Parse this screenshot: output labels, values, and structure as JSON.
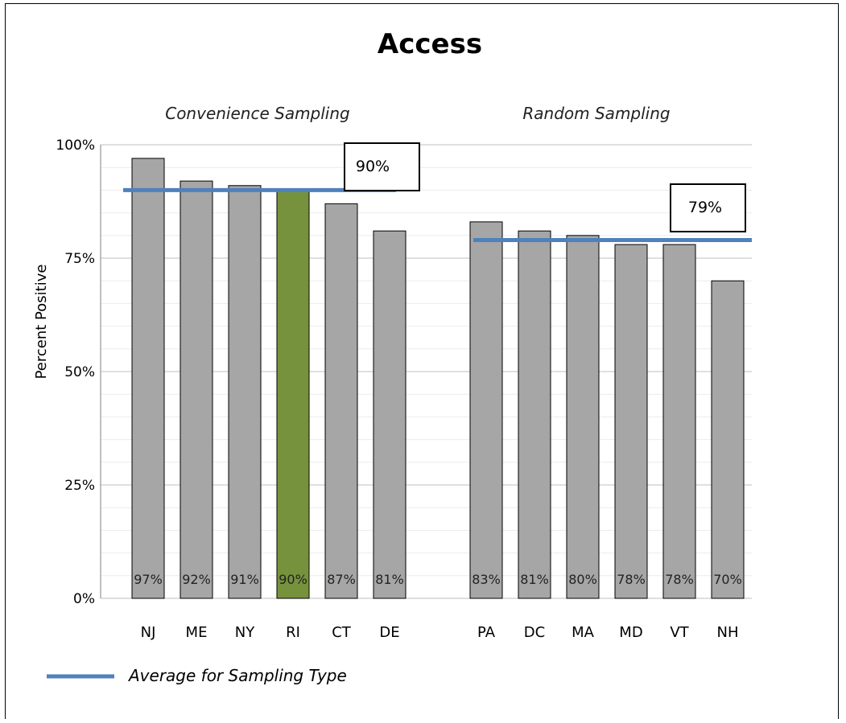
{
  "chart_data": {
    "type": "bar",
    "title": "Access",
    "ylabel": "Percent  Positive",
    "xlabel": "",
    "ylim": [
      0,
      100
    ],
    "yticks": [
      "0%",
      "25%",
      "50%",
      "75%",
      "100%"
    ],
    "grid": true,
    "groups": [
      {
        "label": "Convenience Sampling",
        "categories": [
          "NJ",
          "ME",
          "NY",
          "RI",
          "CT",
          "DE"
        ],
        "values": [
          97,
          92,
          91,
          90,
          87,
          81
        ],
        "data_labels": [
          "97%",
          "92%",
          "91%",
          "90%",
          "87%",
          "81%"
        ],
        "average": 90,
        "average_label": "90%"
      },
      {
        "label": "Random Sampling",
        "categories": [
          "PA",
          "DC",
          "MA",
          "MD",
          "VT",
          "NH"
        ],
        "values": [
          83,
          81,
          80,
          78,
          78,
          70
        ],
        "data_labels": [
          "83%",
          "81%",
          "80%",
          "78%",
          "78%",
          "70%"
        ],
        "average": 79,
        "average_label": "79%"
      }
    ],
    "highlight_category": "RI",
    "legend": {
      "label": "Average for Sampling Type",
      "placement": "bottom-left"
    },
    "colors": {
      "bar": "#a6a6a6",
      "highlight": "#76923c",
      "average_line": "#4f81bd",
      "grid": "#bfbfbf",
      "minor_grid": "#ebebeb"
    }
  }
}
